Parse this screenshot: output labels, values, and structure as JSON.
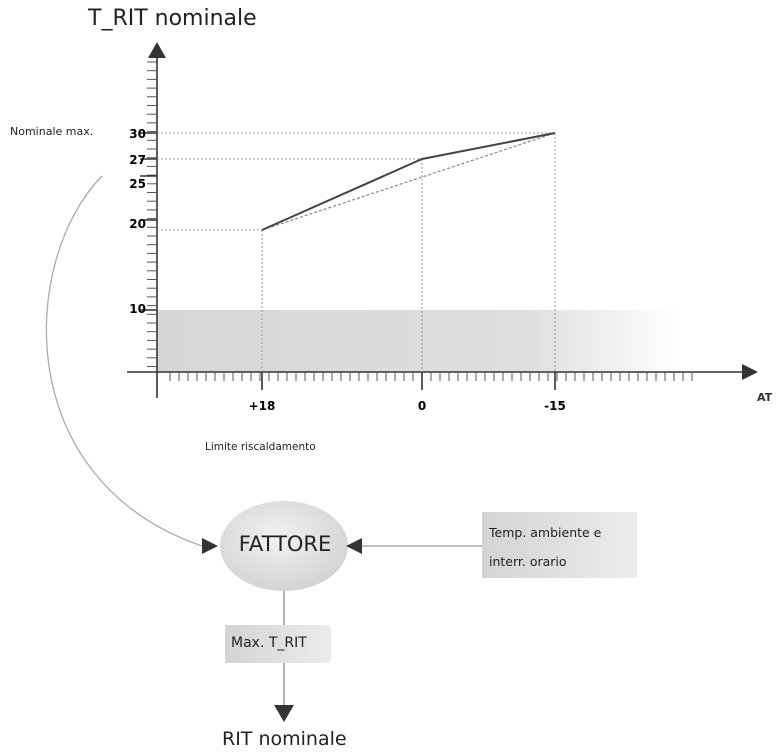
{
  "y_axis_title": "T_RIT nominale",
  "y_max_label": "Nominale max.",
  "x_axis_title": "AT",
  "x_limit_label": "Limite riscaldamento",
  "factor_label": "FATTORE",
  "ambient_box": {
    "line1": "Temp. ambiente e",
    "line2": "interr. orario"
  },
  "max_box_label": "Max. T_RIT",
  "output_label": "RIT nominale",
  "chart_data": {
    "type": "line",
    "x_tick_labels": [
      "+18",
      "0",
      "-15"
    ],
    "y_tick_labels": [
      "30",
      "27",
      "25",
      "20",
      "10"
    ],
    "series": [
      {
        "style": "solid",
        "points": [
          {
            "x": 18,
            "y": 20
          },
          {
            "x": 0,
            "y": 27
          },
          {
            "x": -15,
            "y": 30
          }
        ]
      },
      {
        "style": "dotted",
        "points": [
          {
            "x": 18,
            "y": 20
          },
          {
            "x": -15,
            "y": 30
          }
        ]
      }
    ],
    "shaded_band": {
      "y": [
        0,
        10
      ]
    },
    "colors": {
      "line": "#444444",
      "guide": "#999999",
      "band": "#d9d9d9"
    }
  }
}
